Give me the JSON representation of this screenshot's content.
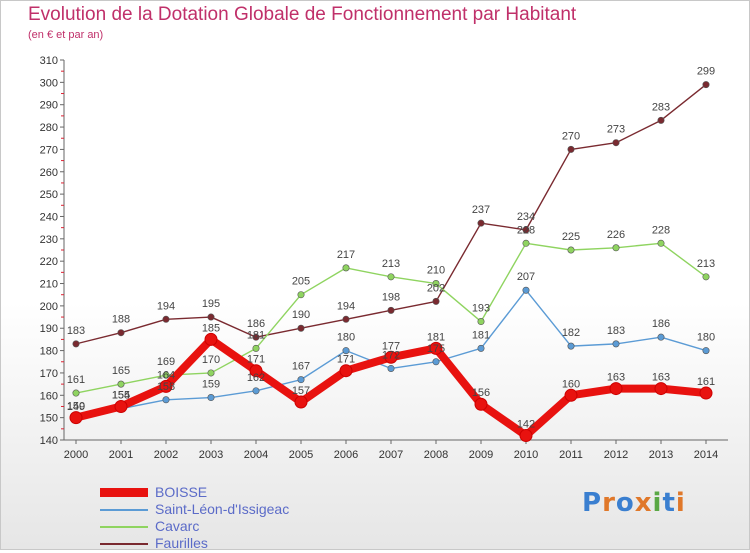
{
  "header": {
    "title": "Evolution de la Dotation Globale de Fonctionnement par Habitant",
    "subtitle": "(en € et par an)"
  },
  "logo": {
    "text": "Proxiti",
    "colors": [
      "#3a7fd0",
      "#e0782a",
      "#3a7fd0",
      "#e0782a",
      "#5aa845",
      "#3a7fd0",
      "#e0782a"
    ]
  },
  "chart_data": {
    "type": "line",
    "title": "Evolution de la Dotation Globale de Fonctionnement par Habitant",
    "subtitle": "(en € et par an)",
    "xlabel": "",
    "ylabel": "",
    "ylim": [
      140,
      310
    ],
    "yticks": [
      140,
      150,
      160,
      170,
      180,
      190,
      200,
      210,
      220,
      230,
      240,
      250,
      260,
      270,
      280,
      290,
      300,
      310
    ],
    "grid": false,
    "legend_position": "bottom-left",
    "x": [
      "2000",
      "2001",
      "2002",
      "2003",
      "2004",
      "2005",
      "2006",
      "2007",
      "2008",
      "2009",
      "2010",
      "2011",
      "2012",
      "2013",
      "2014"
    ],
    "series": [
      {
        "name": "Faurilles",
        "color": "#7a2a30",
        "values": [
          183,
          188,
          194,
          195,
          186,
          190,
          194,
          198,
          202,
          237,
          234,
          270,
          273,
          283,
          299
        ]
      },
      {
        "name": "Cavarc",
        "color": "#8fd460",
        "values": [
          161,
          165,
          169,
          170,
          181,
          205,
          217,
          213,
          210,
          193,
          228,
          225,
          226,
          228,
          213
        ]
      },
      {
        "name": "Saint-Léon-d'Issigeac",
        "color": "#5b9bd5",
        "values": [
          149,
          154,
          158,
          159,
          162,
          167,
          180,
          172,
          175,
          181,
          207,
          182,
          183,
          186,
          180
        ]
      },
      {
        "name": "BOISSE",
        "color": "#e8120f",
        "values": [
          150,
          155,
          164,
          185,
          171,
          157,
          171,
          177,
          181,
          156,
          142,
          160,
          163,
          163,
          161
        ]
      }
    ]
  }
}
